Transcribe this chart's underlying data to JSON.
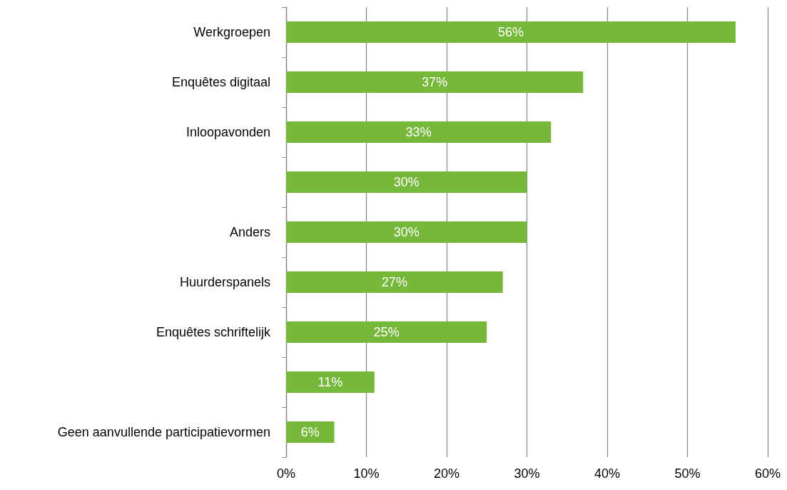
{
  "chart_data": {
    "type": "bar",
    "orientation": "horizontal",
    "categories": [
      "Werkgroepen",
      "Enquêtes digitaal",
      "Inloopavonden",
      null,
      "Anders",
      "Huurderspanels",
      "Enquêtes schriftelijk",
      null,
      "Geen aanvullende participatievormen"
    ],
    "values": [
      56,
      37,
      33,
      30,
      30,
      27,
      25,
      11,
      6
    ],
    "value_labels": [
      "56%",
      "37%",
      "33%",
      "30%",
      "30%",
      "27%",
      "25%",
      "11%",
      "6%"
    ],
    "color": "#76b83a",
    "xlim": [
      0,
      60
    ],
    "xticks": [
      {
        "value": 0,
        "label": "0%"
      },
      {
        "value": 10,
        "label": "10%"
      },
      {
        "value": 20,
        "label": "20%"
      },
      {
        "value": 30,
        "label": "30%"
      },
      {
        "value": 40,
        "label": "40%"
      },
      {
        "value": 50,
        "label": "50%"
      },
      {
        "value": 60,
        "label": "60%"
      }
    ],
    "grid": "x"
  }
}
